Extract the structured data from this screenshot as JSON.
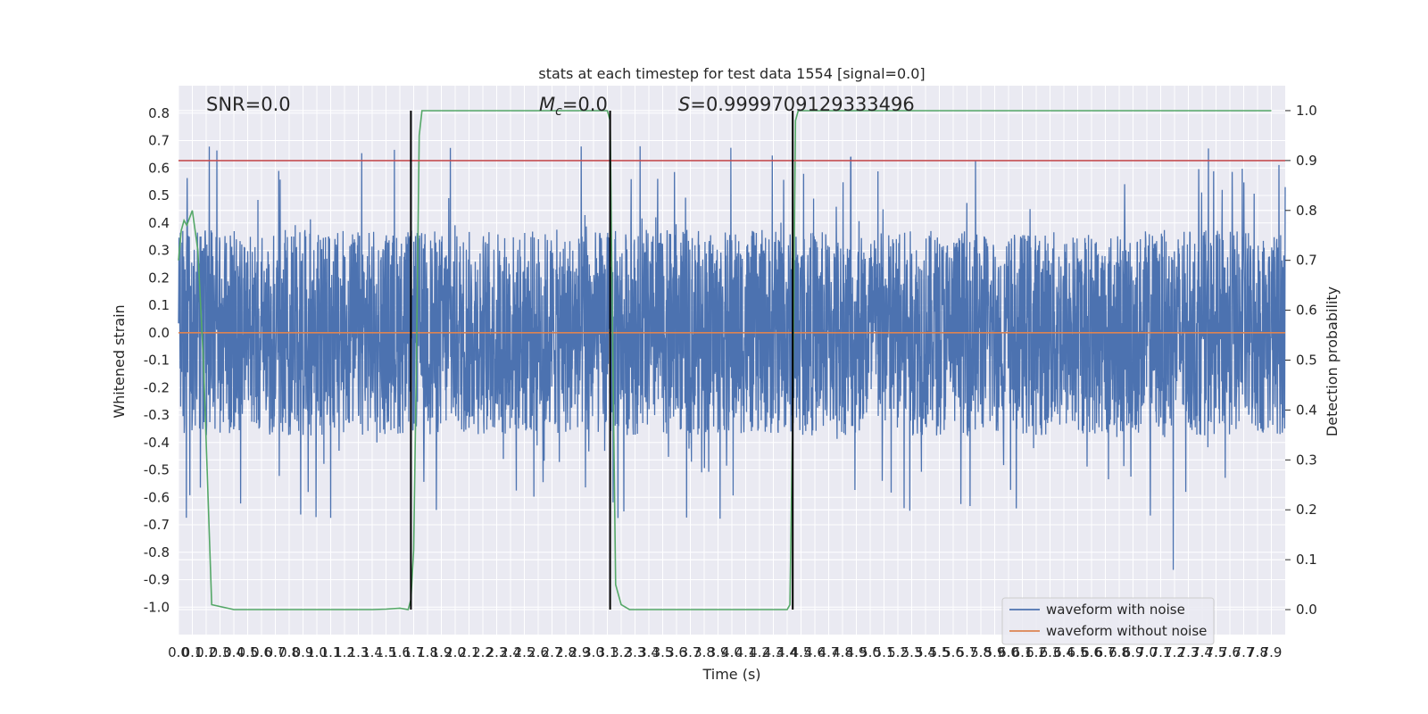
{
  "chart_data": {
    "type": "line",
    "title": "stats at each timestep for test data 1554 [signal=0.0]",
    "xlabel": "Time (s)",
    "ylabel": "Whitened strain",
    "y2label": "Detection probability",
    "xlim": [
      0.0,
      8.0
    ],
    "ylim": [
      -1.1,
      0.9
    ],
    "y2lim": [
      -0.05,
      1.05
    ],
    "grid": true,
    "legend_position": "lower-right",
    "xticks": [
      "0.0",
      "0.1",
      "0.2",
      "0.3",
      "0.4",
      "0.5",
      "0.6",
      "0.7",
      "0.8",
      "0.9",
      "1.0",
      "1.1",
      "1.2",
      "1.3",
      "1.4",
      "1.5",
      "1.6",
      "1.7",
      "1.8",
      "1.9",
      "2.0",
      "2.1",
      "2.2",
      "2.3",
      "2.4",
      "2.5",
      "2.6",
      "2.7",
      "2.8",
      "2.9",
      "3.0",
      "3.1",
      "3.2",
      "3.3",
      "3.4",
      "3.5",
      "3.6",
      "3.7",
      "3.8",
      "3.9",
      "4.0",
      "4.1",
      "4.2",
      "4.3",
      "4.4",
      "4.5",
      "4.6",
      "4.7",
      "4.8",
      "4.9",
      "5.0",
      "5.1",
      "5.2",
      "5.3",
      "5.4",
      "5.5",
      "5.6",
      "5.7",
      "5.8",
      "5.9",
      "6.0",
      "6.1",
      "6.2",
      "6.3",
      "6.4",
      "6.5",
      "6.6",
      "6.7",
      "6.8",
      "6.9",
      "7.0",
      "7.1",
      "7.2",
      "7.3",
      "7.4",
      "7.5",
      "7.6",
      "7.7",
      "7.8",
      "7.9"
    ],
    "yticks": [
      "0.8",
      "0.7",
      "0.6",
      "0.5",
      "0.4",
      "0.3",
      "0.2",
      "0.1",
      "0.0",
      "-0.1",
      "-0.2",
      "-0.3",
      "-0.4",
      "-0.5",
      "-0.6",
      "-0.7",
      "-0.8",
      "-0.9",
      "-1.0"
    ],
    "y2ticks": [
      "1.0",
      "0.9",
      "0.8",
      "0.7",
      "0.6",
      "0.5",
      "0.4",
      "0.3",
      "0.2",
      "0.1",
      "0.0"
    ],
    "annotations": {
      "snr": "SNR=0.0",
      "mc_symbol": "M",
      "mc_sub": "c",
      "mc_value": "=0.0",
      "s_symbol": "S",
      "s_value": "=0.9999709129333496"
    },
    "legend": [
      "waveform with noise",
      "waveform without noise"
    ],
    "series": [
      {
        "name": "waveform with noise",
        "color": "#4c72b0",
        "kind": "noise",
        "range": [
          -1.0,
          0.8
        ],
        "n_points": 4096
      },
      {
        "name": "waveform without noise",
        "color": "#dd8452",
        "x": [
          0.0,
          8.0
        ],
        "y": [
          0.0,
          0.0
        ]
      },
      {
        "color": "#55a868",
        "axis": "right",
        "x": [
          0.0,
          0.02,
          0.04,
          0.06,
          0.1,
          0.14,
          0.18,
          0.24,
          0.4,
          0.8,
          1.2,
          1.3,
          1.4,
          1.5,
          1.6,
          1.66,
          1.68,
          1.7,
          1.72,
          1.74,
          1.76,
          1.8,
          2.4,
          3.0,
          3.1,
          3.12,
          3.14,
          3.16,
          3.2,
          3.26,
          3.32,
          3.5,
          4.0,
          4.2,
          4.3,
          4.4,
          4.42,
          4.44,
          4.46,
          4.48,
          4.5,
          4.56,
          5.0,
          6.0,
          7.0,
          7.9
        ],
        "y": [
          0.7,
          0.76,
          0.78,
          0.77,
          0.8,
          0.72,
          0.5,
          0.01,
          0.0,
          0.0,
          0.0,
          0.0,
          0.0,
          0.001,
          0.003,
          0.0,
          0.02,
          0.12,
          0.5,
          0.95,
          1.0,
          1.0,
          1.0,
          1.0,
          1.0,
          0.98,
          0.5,
          0.05,
          0.01,
          0.0,
          0.0,
          0.0,
          0.0,
          0.0,
          0.0,
          0.0,
          0.01,
          0.4,
          0.98,
          1.0,
          1.0,
          1.0,
          1.0,
          1.0,
          1.0,
          1.0
        ]
      },
      {
        "color": "#c44e52",
        "axis": "right",
        "x": [
          0.0,
          8.0
        ],
        "y": [
          0.9,
          0.9
        ]
      }
    ],
    "vlines": [
      1.68,
      3.12,
      4.44
    ]
  }
}
